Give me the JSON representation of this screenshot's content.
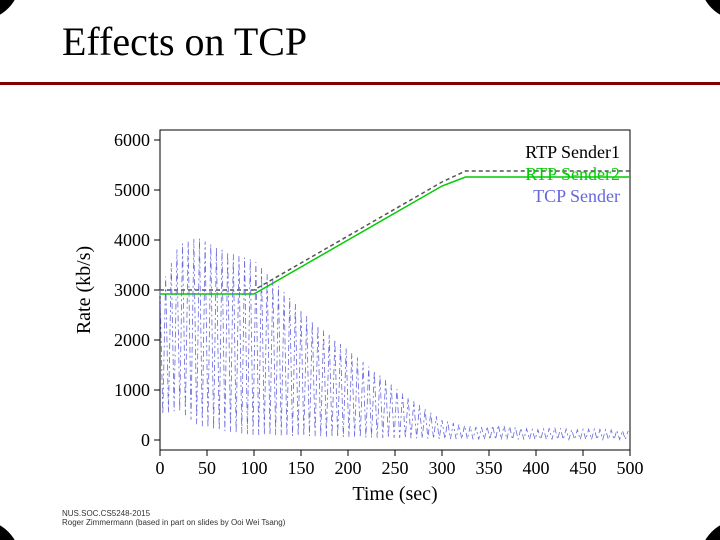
{
  "slide": {
    "title": "Effects on TCP",
    "footer_line1": "NUS.SOC.CS5248-2015",
    "footer_line2": "Roger Zimmermann (based in part on slides by Ooi Wei Tsang)"
  },
  "chart": {
    "type": "line",
    "background_color": "#ffffff",
    "plot_border_color": "#000000",
    "grid_color": "#c0c0c0",
    "xlabel": "Time (sec)",
    "ylabel": "Rate (kb/s)",
    "label_fontsize": 20,
    "tick_fontsize": 18,
    "xlim": [
      0,
      500
    ],
    "ylim": [
      -200,
      6200
    ],
    "xtick_step": 50,
    "yticks": [
      0,
      1000,
      2000,
      3000,
      4000,
      5000,
      6000
    ],
    "legend": {
      "position": "inside-top-right",
      "items": [
        {
          "label": "RTP Sender1",
          "color": "#000000",
          "dash": "dashed"
        },
        {
          "label": "RTP Sender2",
          "color": "#00cc00",
          "dash": "solid"
        },
        {
          "label": "TCP Sender",
          "color": "#6666dd",
          "dash": "dashdot"
        }
      ]
    },
    "series": [
      {
        "name": "RTP Sender1",
        "color": "#555555",
        "dash": "4,3",
        "width": 1.5,
        "data": [
          [
            0,
            3000
          ],
          [
            50,
            3000
          ],
          [
            100,
            3000
          ],
          [
            150,
            3540
          ],
          [
            200,
            4080
          ],
          [
            250,
            4620
          ],
          [
            300,
            5160
          ],
          [
            325,
            5380
          ],
          [
            350,
            5380
          ],
          [
            400,
            5380
          ],
          [
            450,
            5380
          ],
          [
            500,
            5380
          ]
        ]
      },
      {
        "name": "RTP Sender2",
        "color": "#00cc00",
        "dash": "none",
        "width": 1.5,
        "data": [
          [
            0,
            2920
          ],
          [
            50,
            2920
          ],
          [
            100,
            2920
          ],
          [
            150,
            3460
          ],
          [
            200,
            4000
          ],
          [
            250,
            4540
          ],
          [
            300,
            5080
          ],
          [
            325,
            5260
          ],
          [
            350,
            5260
          ],
          [
            400,
            5260
          ],
          [
            450,
            5260
          ],
          [
            500,
            5260
          ]
        ]
      },
      {
        "name": "TCP Sender",
        "color": "#6666dd",
        "dash": "6,3,2,3",
        "width": 0.8,
        "oscillating": true,
        "envelope_top": [
          [
            0,
            3000
          ],
          [
            20,
            3900
          ],
          [
            40,
            4050
          ],
          [
            60,
            3850
          ],
          [
            80,
            3700
          ],
          [
            100,
            3600
          ],
          [
            120,
            3200
          ],
          [
            140,
            2800
          ],
          [
            160,
            2400
          ],
          [
            180,
            2100
          ],
          [
            200,
            1800
          ],
          [
            220,
            1500
          ],
          [
            240,
            1200
          ],
          [
            260,
            900
          ],
          [
            280,
            650
          ],
          [
            300,
            400
          ],
          [
            320,
            300
          ],
          [
            340,
            250
          ],
          [
            360,
            300
          ],
          [
            380,
            250
          ],
          [
            400,
            200
          ],
          [
            420,
            250
          ],
          [
            440,
            200
          ],
          [
            460,
            220
          ],
          [
            480,
            200
          ],
          [
            500,
            180
          ]
        ],
        "envelope_bottom": [
          [
            0,
            500
          ],
          [
            20,
            600
          ],
          [
            40,
            300
          ],
          [
            60,
            200
          ],
          [
            80,
            150
          ],
          [
            100,
            100
          ],
          [
            120,
            100
          ],
          [
            140,
            80
          ],
          [
            160,
            80
          ],
          [
            180,
            60
          ],
          [
            200,
            60
          ],
          [
            220,
            50
          ],
          [
            240,
            40
          ],
          [
            260,
            40
          ],
          [
            280,
            30
          ],
          [
            300,
            20
          ],
          [
            320,
            20
          ],
          [
            340,
            10
          ],
          [
            360,
            10
          ],
          [
            380,
            10
          ],
          [
            400,
            10
          ],
          [
            420,
            10
          ],
          [
            440,
            10
          ],
          [
            460,
            10
          ],
          [
            480,
            10
          ],
          [
            500,
            10
          ]
        ],
        "osc_period": 6
      }
    ]
  }
}
